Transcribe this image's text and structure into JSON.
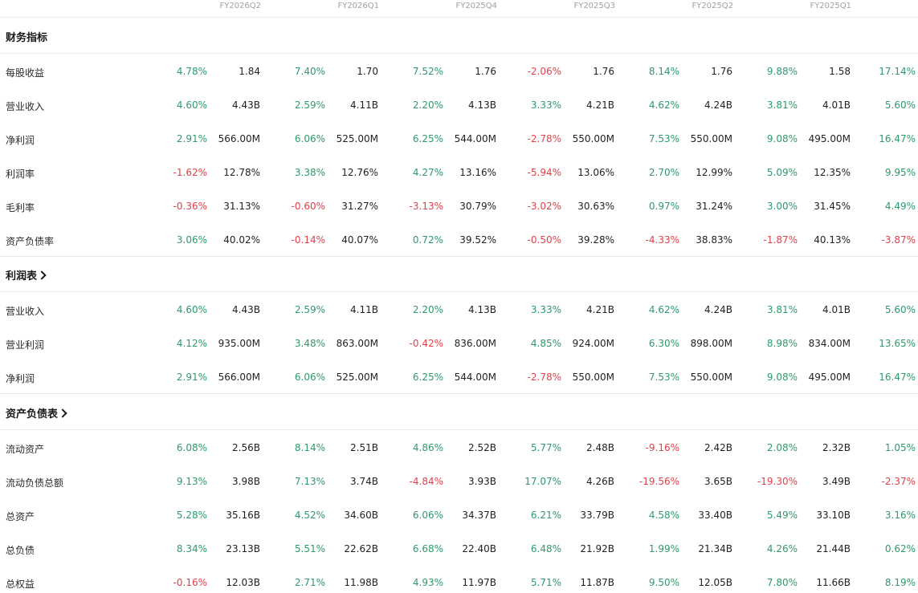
{
  "colors": {
    "positive": "#2e9a6c",
    "negative": "#e0424a",
    "header_text": "#a0a0a0"
  },
  "periods": [
    "FY2026Q2",
    "FY2026Q1",
    "FY2025Q4",
    "FY2025Q3",
    "FY2025Q2",
    "FY2025Q1",
    ""
  ],
  "sections": [
    {
      "title": "财务指标",
      "has_link": false,
      "rows": [
        {
          "label": "每股收益",
          "cells": [
            {
              "chg": "4.78%",
              "val": "1.84",
              "dir": "pos"
            },
            {
              "chg": "7.40%",
              "val": "1.70",
              "dir": "pos"
            },
            {
              "chg": "7.52%",
              "val": "1.76",
              "dir": "pos"
            },
            {
              "chg": "-2.06%",
              "val": "1.76",
              "dir": "neg"
            },
            {
              "chg": "8.14%",
              "val": "1.76",
              "dir": "pos"
            },
            {
              "chg": "9.88%",
              "val": "1.58",
              "dir": "pos"
            },
            {
              "chg": "17.14%",
              "val": "",
              "dir": "pos"
            }
          ]
        },
        {
          "label": "营业收入",
          "cells": [
            {
              "chg": "4.60%",
              "val": "4.43B",
              "dir": "pos"
            },
            {
              "chg": "2.59%",
              "val": "4.11B",
              "dir": "pos"
            },
            {
              "chg": "2.20%",
              "val": "4.13B",
              "dir": "pos"
            },
            {
              "chg": "3.33%",
              "val": "4.21B",
              "dir": "pos"
            },
            {
              "chg": "4.62%",
              "val": "4.24B",
              "dir": "pos"
            },
            {
              "chg": "3.81%",
              "val": "4.01B",
              "dir": "pos"
            },
            {
              "chg": "5.60%",
              "val": "",
              "dir": "pos"
            }
          ]
        },
        {
          "label": "净利润",
          "cells": [
            {
              "chg": "2.91%",
              "val": "566.00M",
              "dir": "pos"
            },
            {
              "chg": "6.06%",
              "val": "525.00M",
              "dir": "pos"
            },
            {
              "chg": "6.25%",
              "val": "544.00M",
              "dir": "pos"
            },
            {
              "chg": "-2.78%",
              "val": "550.00M",
              "dir": "neg"
            },
            {
              "chg": "7.53%",
              "val": "550.00M",
              "dir": "pos"
            },
            {
              "chg": "9.08%",
              "val": "495.00M",
              "dir": "pos"
            },
            {
              "chg": "16.47%",
              "val": "",
              "dir": "pos"
            }
          ]
        },
        {
          "label": "利润率",
          "cells": [
            {
              "chg": "-1.62%",
              "val": "12.78%",
              "dir": "neg"
            },
            {
              "chg": "3.38%",
              "val": "12.76%",
              "dir": "pos"
            },
            {
              "chg": "4.27%",
              "val": "13.16%",
              "dir": "pos"
            },
            {
              "chg": "-5.94%",
              "val": "13.06%",
              "dir": "neg"
            },
            {
              "chg": "2.70%",
              "val": "12.99%",
              "dir": "pos"
            },
            {
              "chg": "5.09%",
              "val": "12.35%",
              "dir": "pos"
            },
            {
              "chg": "9.95%",
              "val": "",
              "dir": "pos"
            }
          ]
        },
        {
          "label": "毛利率",
          "cells": [
            {
              "chg": "-0.36%",
              "val": "31.13%",
              "dir": "neg"
            },
            {
              "chg": "-0.60%",
              "val": "31.27%",
              "dir": "neg"
            },
            {
              "chg": "-3.13%",
              "val": "30.79%",
              "dir": "neg"
            },
            {
              "chg": "-3.02%",
              "val": "30.63%",
              "dir": "neg"
            },
            {
              "chg": "0.97%",
              "val": "31.24%",
              "dir": "pos"
            },
            {
              "chg": "3.00%",
              "val": "31.45%",
              "dir": "pos"
            },
            {
              "chg": "4.49%",
              "val": "",
              "dir": "pos"
            }
          ]
        },
        {
          "label": "资产负债率",
          "cells": [
            {
              "chg": "3.06%",
              "val": "40.02%",
              "dir": "pos"
            },
            {
              "chg": "-0.14%",
              "val": "40.07%",
              "dir": "neg"
            },
            {
              "chg": "0.72%",
              "val": "39.52%",
              "dir": "pos"
            },
            {
              "chg": "-0.50%",
              "val": "39.28%",
              "dir": "neg"
            },
            {
              "chg": "-4.33%",
              "val": "38.83%",
              "dir": "neg"
            },
            {
              "chg": "-1.87%",
              "val": "40.13%",
              "dir": "neg"
            },
            {
              "chg": "-3.87%",
              "val": "",
              "dir": "neg"
            }
          ]
        }
      ]
    },
    {
      "title": "利润表",
      "has_link": true,
      "rows": [
        {
          "label": "营业收入",
          "cells": [
            {
              "chg": "4.60%",
              "val": "4.43B",
              "dir": "pos"
            },
            {
              "chg": "2.59%",
              "val": "4.11B",
              "dir": "pos"
            },
            {
              "chg": "2.20%",
              "val": "4.13B",
              "dir": "pos"
            },
            {
              "chg": "3.33%",
              "val": "4.21B",
              "dir": "pos"
            },
            {
              "chg": "4.62%",
              "val": "4.24B",
              "dir": "pos"
            },
            {
              "chg": "3.81%",
              "val": "4.01B",
              "dir": "pos"
            },
            {
              "chg": "5.60%",
              "val": "",
              "dir": "pos"
            }
          ]
        },
        {
          "label": "营业利润",
          "cells": [
            {
              "chg": "4.12%",
              "val": "935.00M",
              "dir": "pos"
            },
            {
              "chg": "3.48%",
              "val": "863.00M",
              "dir": "pos"
            },
            {
              "chg": "-0.42%",
              "val": "836.00M",
              "dir": "neg"
            },
            {
              "chg": "4.85%",
              "val": "924.00M",
              "dir": "pos"
            },
            {
              "chg": "6.30%",
              "val": "898.00M",
              "dir": "pos"
            },
            {
              "chg": "8.98%",
              "val": "834.00M",
              "dir": "pos"
            },
            {
              "chg": "13.65%",
              "val": "",
              "dir": "pos"
            }
          ]
        },
        {
          "label": "净利润",
          "cells": [
            {
              "chg": "2.91%",
              "val": "566.00M",
              "dir": "pos"
            },
            {
              "chg": "6.06%",
              "val": "525.00M",
              "dir": "pos"
            },
            {
              "chg": "6.25%",
              "val": "544.00M",
              "dir": "pos"
            },
            {
              "chg": "-2.78%",
              "val": "550.00M",
              "dir": "neg"
            },
            {
              "chg": "7.53%",
              "val": "550.00M",
              "dir": "pos"
            },
            {
              "chg": "9.08%",
              "val": "495.00M",
              "dir": "pos"
            },
            {
              "chg": "16.47%",
              "val": "",
              "dir": "pos"
            }
          ]
        }
      ]
    },
    {
      "title": "资产负债表",
      "has_link": true,
      "rows": [
        {
          "label": "流动资产",
          "cells": [
            {
              "chg": "6.08%",
              "val": "2.56B",
              "dir": "pos"
            },
            {
              "chg": "8.14%",
              "val": "2.51B",
              "dir": "pos"
            },
            {
              "chg": "4.86%",
              "val": "2.52B",
              "dir": "pos"
            },
            {
              "chg": "5.77%",
              "val": "2.48B",
              "dir": "pos"
            },
            {
              "chg": "-9.16%",
              "val": "2.42B",
              "dir": "neg"
            },
            {
              "chg": "2.08%",
              "val": "2.32B",
              "dir": "pos"
            },
            {
              "chg": "1.05%",
              "val": "",
              "dir": "pos"
            }
          ]
        },
        {
          "label": "流动负债总额",
          "cells": [
            {
              "chg": "9.13%",
              "val": "3.98B",
              "dir": "pos"
            },
            {
              "chg": "7.13%",
              "val": "3.74B",
              "dir": "pos"
            },
            {
              "chg": "-4.84%",
              "val": "3.93B",
              "dir": "neg"
            },
            {
              "chg": "17.07%",
              "val": "4.26B",
              "dir": "pos"
            },
            {
              "chg": "-19.56%",
              "val": "3.65B",
              "dir": "neg"
            },
            {
              "chg": "-19.30%",
              "val": "3.49B",
              "dir": "neg"
            },
            {
              "chg": "-2.37%",
              "val": "",
              "dir": "neg"
            }
          ]
        },
        {
          "label": "总资产",
          "cells": [
            {
              "chg": "5.28%",
              "val": "35.16B",
              "dir": "pos"
            },
            {
              "chg": "4.52%",
              "val": "34.60B",
              "dir": "pos"
            },
            {
              "chg": "6.06%",
              "val": "34.37B",
              "dir": "pos"
            },
            {
              "chg": "6.21%",
              "val": "33.79B",
              "dir": "pos"
            },
            {
              "chg": "4.58%",
              "val": "33.40B",
              "dir": "pos"
            },
            {
              "chg": "5.49%",
              "val": "33.10B",
              "dir": "pos"
            },
            {
              "chg": "3.16%",
              "val": "",
              "dir": "pos"
            }
          ]
        },
        {
          "label": "总负债",
          "cells": [
            {
              "chg": "8.34%",
              "val": "23.13B",
              "dir": "pos"
            },
            {
              "chg": "5.51%",
              "val": "22.62B",
              "dir": "pos"
            },
            {
              "chg": "6.68%",
              "val": "22.40B",
              "dir": "pos"
            },
            {
              "chg": "6.48%",
              "val": "21.92B",
              "dir": "pos"
            },
            {
              "chg": "1.99%",
              "val": "21.34B",
              "dir": "pos"
            },
            {
              "chg": "4.26%",
              "val": "21.44B",
              "dir": "pos"
            },
            {
              "chg": "0.62%",
              "val": "",
              "dir": "pos"
            }
          ]
        },
        {
          "label": "总权益",
          "cells": [
            {
              "chg": "-0.16%",
              "val": "12.03B",
              "dir": "neg"
            },
            {
              "chg": "2.71%",
              "val": "11.98B",
              "dir": "pos"
            },
            {
              "chg": "4.93%",
              "val": "11.97B",
              "dir": "pos"
            },
            {
              "chg": "5.71%",
              "val": "11.87B",
              "dir": "pos"
            },
            {
              "chg": "9.50%",
              "val": "12.05B",
              "dir": "pos"
            },
            {
              "chg": "7.80%",
              "val": "11.66B",
              "dir": "pos"
            },
            {
              "chg": "8.19%",
              "val": "",
              "dir": "pos"
            }
          ]
        }
      ]
    }
  ]
}
